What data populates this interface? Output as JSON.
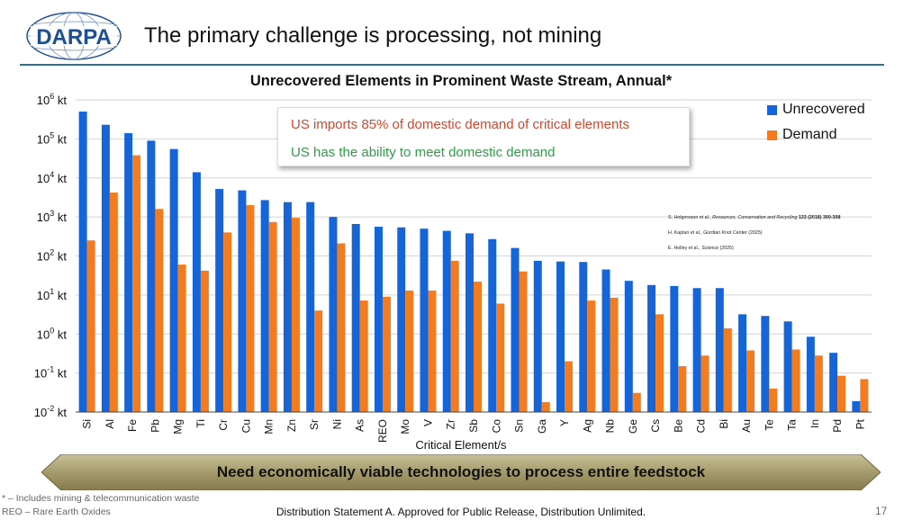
{
  "header": {
    "logo_text": "DARPA",
    "title": "The primary challenge is processing, not mining"
  },
  "callout": {
    "line1": "US imports 85% of domestic demand of critical elements",
    "line2": "US has the ability to meet domestic demand"
  },
  "references": [
    {
      "authors": "S. Holgersson et al., ",
      "source": "Resources, Conservation and Recycling",
      "detail": " 133 (2018) 300-308"
    },
    {
      "authors": "H. Kaplan et al., ",
      "source": "Gordian Knot Center",
      "detail": " (2025)"
    },
    {
      "authors": "E. Holley et al., ",
      "source": "Science",
      "detail": " (2025)"
    }
  ],
  "banner": "Need economically viable technologies to process entire feedstock",
  "footnotes": [
    "* – Includes mining & telecommunication waste",
    "REO – Rare Earth Oxides"
  ],
  "distribution": "Distribution Statement A. Approved for Public Release, Distribution Unlimited.",
  "page_number": "17",
  "colors": {
    "unrecovered": "#1565d8",
    "demand": "#f47c20",
    "accent": "#2f6e9c",
    "banner": "#a49a6c"
  },
  "chart_data": {
    "type": "bar",
    "title": "Unrecovered Elements in Prominent Waste Stream, Annual*",
    "xlabel": "Critical Element/s",
    "ylabel": "",
    "yscale": "log",
    "ylim": [
      0.01,
      1000000
    ],
    "yticks": [
      {
        "base": "10",
        "exp": "-2",
        "unit": " kt"
      },
      {
        "base": "10",
        "exp": "-1",
        "unit": " kt"
      },
      {
        "base": "10",
        "exp": "0",
        "unit": " kt"
      },
      {
        "base": "10",
        "exp": "1",
        "unit": " kt"
      },
      {
        "base": "10",
        "exp": "2",
        "unit": " kt"
      },
      {
        "base": "10",
        "exp": "3",
        "unit": " kt"
      },
      {
        "base": "10",
        "exp": "4",
        "unit": " kt"
      },
      {
        "base": "10",
        "exp": "5",
        "unit": " kt"
      },
      {
        "base": "10",
        "exp": "6",
        "unit": " kt"
      }
    ],
    "grid": true,
    "legend": "top-right",
    "categories": [
      "Si",
      "Al",
      "Fe",
      "Pb",
      "Mg",
      "Ti",
      "Cr",
      "Cu",
      "Mn",
      "Zn",
      "Sr",
      "Ni",
      "As",
      "REO",
      "Mo",
      "V",
      "Zr",
      "Sb",
      "Co",
      "Sn",
      "Ga",
      "Y",
      "Ag",
      "Nb",
      "Ge",
      "Cs",
      "Be",
      "Cd",
      "Bi",
      "Au",
      "Te",
      "Ta",
      "In",
      "Pd",
      "Pt"
    ],
    "series": [
      {
        "name": "Unrecovered",
        "values": [
          500000,
          230000,
          140000,
          90000,
          55000,
          14000,
          5200,
          4800,
          2700,
          2400,
          2400,
          1000,
          660,
          560,
          540,
          500,
          440,
          380,
          270,
          160,
          75,
          72,
          70,
          45,
          23,
          18,
          17,
          15,
          15,
          3.2,
          2.9,
          2.1,
          0.85,
          0.33,
          0.019
        ]
      },
      {
        "name": "Demand",
        "values": [
          250,
          4200,
          38000,
          1600,
          60,
          42,
          400,
          2000,
          740,
          950,
          4,
          210,
          7.2,
          9,
          13,
          13,
          75,
          22,
          6,
          40,
          0.018,
          0.2,
          7.2,
          8.5,
          0.031,
          3.2,
          0.15,
          0.28,
          1.4,
          0.38,
          0.04,
          0.4,
          0.28,
          0.085,
          0.07
        ]
      }
    ]
  }
}
